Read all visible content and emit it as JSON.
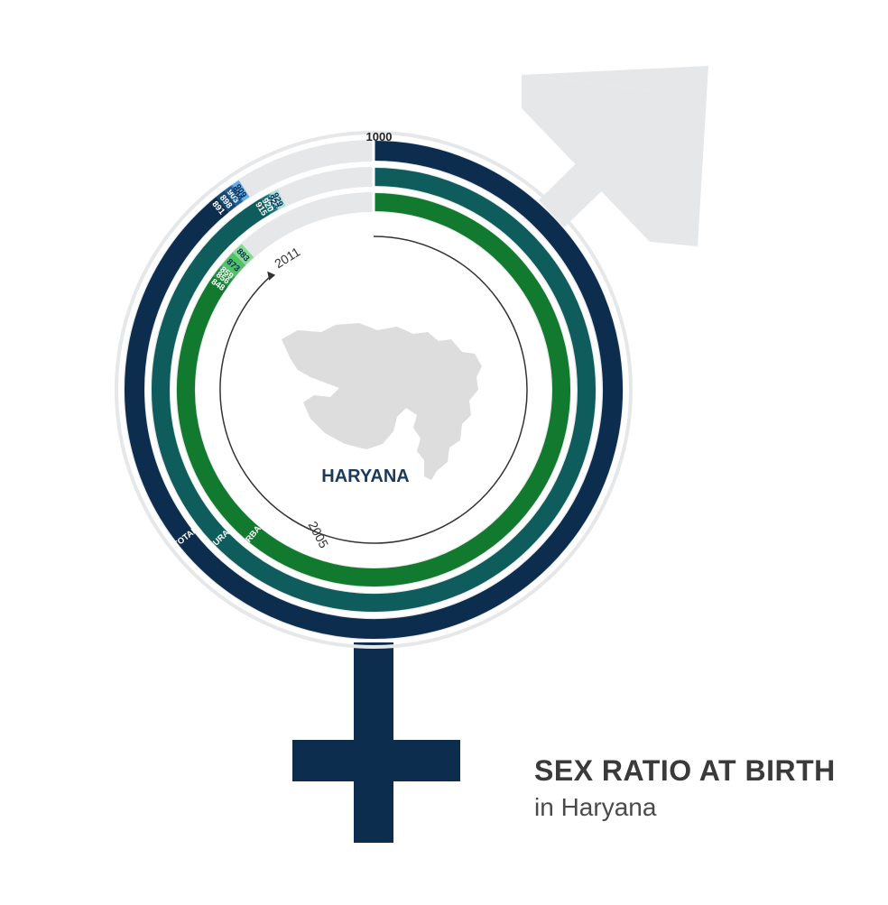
{
  "chart_data": {
    "type": "radial-bar",
    "title": "SEX RATIO AT BIRTH",
    "subtitle": "in Haryana",
    "max_label": "1000",
    "map_label": "HARYANA",
    "start_year_label": "2005",
    "end_year_label": "2011",
    "series": [
      {
        "name": "TOTAL",
        "color": "#0c2d4e",
        "segment_colors": [
          "#0c2d4e",
          "#17466f",
          "#1f5f95",
          "#2f82c4",
          "#64aee8"
        ],
        "values": [
          891,
          898,
          903,
          904,
          909
        ]
      },
      {
        "name": "RURAL",
        "color": "#0f5c5c",
        "segment_colors": [
          "#0f5c5c",
          "#127272",
          "#1a8686",
          "#55bcbc",
          "#a8e0dd"
        ],
        "values": [
          915,
          920,
          922,
          923,
          929
        ]
      },
      {
        "name": "URBAN",
        "color": "#127a2e",
        "segment_colors": [
          "#127a2e",
          "#1e8e3e",
          "#32a44e",
          "#52c06a",
          "#84dc92"
        ],
        "values": [
          848,
          856,
          859,
          873,
          883
        ]
      }
    ]
  }
}
